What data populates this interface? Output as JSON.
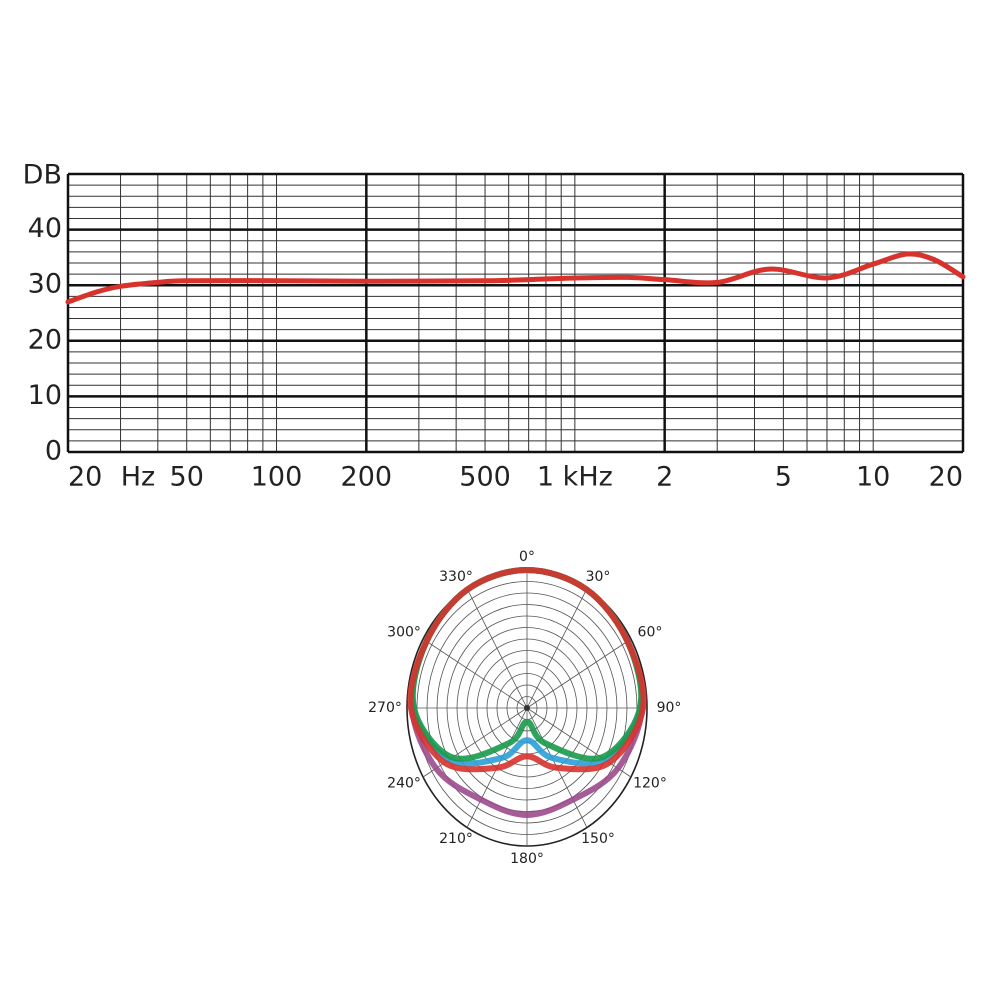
{
  "chart_data": [
    {
      "type": "line",
      "xscale": "log",
      "y_label": "DB",
      "x_label": "Hz",
      "x": [
        20,
        25,
        30,
        40,
        50,
        100,
        200,
        500,
        700,
        1000,
        1500,
        2000,
        3000,
        4500,
        7000,
        10000,
        13000,
        16000,
        20000
      ],
      "series": [
        {
          "color": "#d8322c",
          "values": [
            27,
            28.8,
            29.8,
            30.5,
            30.8,
            30.8,
            30.7,
            30.8,
            31,
            31.3,
            31.4,
            31,
            30.5,
            32.9,
            31.3,
            33.8,
            35.6,
            34.6,
            31.5
          ]
        }
      ],
      "xlim": [
        20,
        20000
      ],
      "xticks": [
        20,
        50,
        100,
        200,
        500,
        {
          "value": 1000,
          "label": "1 kHz"
        },
        {
          "value": 2000,
          "label": "2"
        },
        {
          "value": 5000,
          "label": "5"
        },
        {
          "value": 10000,
          "label": "10"
        },
        {
          "value": 20000,
          "label": "20"
        }
      ],
      "x_major_grid": [
        20,
        200,
        2000,
        20000
      ],
      "x_minor_grid": [
        30,
        40,
        50,
        60,
        70,
        80,
        90,
        100,
        300,
        400,
        500,
        600,
        700,
        800,
        900,
        1000,
        3000,
        4000,
        5000,
        6000,
        7000,
        8000,
        9000,
        10000
      ],
      "ylim": [
        0,
        50
      ],
      "yticks": [
        0,
        10,
        20,
        30,
        40
      ],
      "y_major_grid": [
        0,
        10,
        20,
        30,
        40,
        50
      ],
      "y_minor_grid": [
        2,
        4,
        6,
        8,
        12,
        14,
        16,
        18,
        22,
        24,
        26,
        28,
        32,
        34,
        36,
        38,
        42,
        44,
        46,
        48
      ],
      "grid": true
    },
    {
      "type": "polar",
      "theta": [
        0,
        30,
        60,
        90,
        120,
        150,
        180,
        210,
        240,
        270,
        300,
        330
      ],
      "theta_ticks": [
        {
          "value": 0,
          "label": "0°"
        },
        {
          "value": 30,
          "label": "30°"
        },
        {
          "value": 60,
          "label": "60°"
        },
        {
          "value": 90,
          "label": "90°"
        },
        {
          "value": 120,
          "label": "120°"
        },
        {
          "value": 150,
          "label": "150°"
        },
        {
          "value": 180,
          "label": "180°"
        },
        {
          "value": 210,
          "label": "210°"
        },
        {
          "value": 240,
          "label": "240°"
        },
        {
          "value": 270,
          "label": "270°"
        },
        {
          "value": 300,
          "label": "300°"
        },
        {
          "value": 330,
          "label": "330°"
        }
      ],
      "rlim": [
        0,
        12
      ],
      "rticks": [
        1,
        2,
        3,
        4,
        5,
        6,
        7,
        8,
        9,
        10,
        11,
        12
      ],
      "series": [
        {
          "color": "#9b4a8c",
          "values": [
            12,
            11.9,
            11.6,
            11.5,
            10.5,
            9.2,
            9.3,
            9.2,
            10.5,
            11.5,
            11.6,
            11.9
          ]
        },
        {
          "color": "#2aa0d8",
          "values": [
            12,
            11.9,
            11.6,
            11.4,
            9,
            5,
            2.8,
            5,
            9,
            11.4,
            11.6,
            11.9
          ]
        },
        {
          "color": "#1a9a4a",
          "values": [
            12,
            11.9,
            11.6,
            11.3,
            8.6,
            3.5,
            1.2,
            3.5,
            8.6,
            11.3,
            11.6,
            11.9
          ]
        },
        {
          "color": "#d8322c",
          "values": [
            12,
            11.9,
            11.6,
            11.6,
            9.5,
            6,
            4.2,
            6,
            9.5,
            11.6,
            11.6,
            11.9
          ]
        }
      ]
    }
  ]
}
